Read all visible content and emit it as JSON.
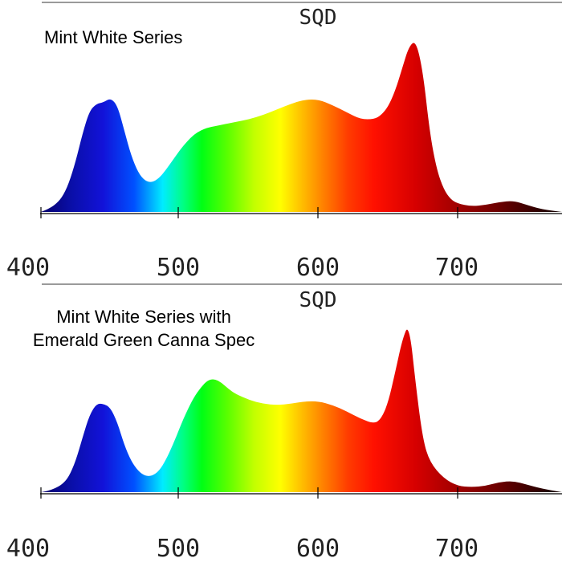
{
  "chart_data": [
    {
      "type": "area",
      "header": "SQD",
      "caption_lines": [
        "Mint White Series"
      ],
      "x_ticks": [
        400,
        500,
        600,
        700
      ],
      "xlim": [
        400,
        775
      ],
      "ylim": [
        0,
        1
      ],
      "grid": false,
      "fill": "visible-spectrum gradient",
      "series": [
        {
          "x": [
            400,
            405,
            410,
            415,
            420,
            425,
            430,
            435,
            440,
            445,
            450,
            455,
            460,
            465,
            470,
            475,
            480,
            485,
            490,
            495,
            500,
            505,
            510,
            515,
            520,
            525,
            530,
            540,
            550,
            560,
            570,
            580,
            590,
            600,
            610,
            620,
            630,
            640,
            645,
            650,
            655,
            660,
            665,
            670,
            675,
            680,
            685,
            690,
            695,
            700,
            710,
            720,
            730,
            740,
            750,
            760,
            775
          ],
          "y": [
            0.0,
            0.02,
            0.05,
            0.1,
            0.2,
            0.36,
            0.56,
            0.72,
            0.77,
            0.78,
            0.81,
            0.76,
            0.58,
            0.4,
            0.28,
            0.22,
            0.21,
            0.24,
            0.3,
            0.37,
            0.44,
            0.5,
            0.55,
            0.58,
            0.6,
            0.61,
            0.62,
            0.64,
            0.66,
            0.69,
            0.73,
            0.77,
            0.8,
            0.8,
            0.76,
            0.71,
            0.66,
            0.66,
            0.69,
            0.75,
            0.86,
            1.02,
            1.18,
            1.22,
            1.0,
            0.56,
            0.3,
            0.16,
            0.09,
            0.06,
            0.04,
            0.05,
            0.07,
            0.08,
            0.05,
            0.02,
            0.0
          ]
        }
      ]
    },
    {
      "type": "area",
      "header": "SQD",
      "caption_lines": [
        "Mint White Series with",
        "Emerald Green Canna Spec"
      ],
      "x_ticks": [
        400,
        500,
        600,
        700
      ],
      "xlim": [
        400,
        775
      ],
      "ylim": [
        0,
        1
      ],
      "grid": false,
      "fill": "visible-spectrum gradient",
      "series": [
        {
          "x": [
            400,
            405,
            410,
            415,
            420,
            425,
            430,
            435,
            440,
            445,
            450,
            455,
            460,
            465,
            470,
            475,
            480,
            485,
            490,
            495,
            500,
            505,
            510,
            515,
            520,
            525,
            530,
            535,
            540,
            550,
            560,
            570,
            580,
            590,
            600,
            610,
            620,
            630,
            640,
            645,
            650,
            655,
            660,
            665,
            670,
            675,
            680,
            690,
            700,
            710,
            720,
            730,
            740,
            750,
            760,
            775
          ],
          "y": [
            0.0,
            0.01,
            0.03,
            0.06,
            0.12,
            0.25,
            0.44,
            0.62,
            0.71,
            0.71,
            0.68,
            0.56,
            0.38,
            0.25,
            0.17,
            0.13,
            0.13,
            0.17,
            0.26,
            0.38,
            0.52,
            0.65,
            0.76,
            0.84,
            0.9,
            0.91,
            0.88,
            0.83,
            0.79,
            0.74,
            0.71,
            0.7,
            0.71,
            0.73,
            0.73,
            0.7,
            0.65,
            0.59,
            0.55,
            0.59,
            0.72,
            0.96,
            1.22,
            1.36,
            0.85,
            0.42,
            0.24,
            0.11,
            0.05,
            0.04,
            0.05,
            0.08,
            0.09,
            0.06,
            0.03,
            0.0
          ]
        }
      ]
    }
  ]
}
